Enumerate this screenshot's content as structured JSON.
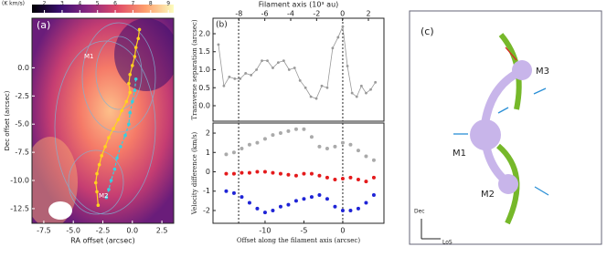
{
  "chart_data": [
    {
      "type": "scatter",
      "annotations": [
        "(a)",
        "M1",
        "M2"
      ],
      "xlabel": "RA offset (arcsec)",
      "ylabel": "Dec offset (arcsec)",
      "xlim": [
        -8.5,
        3.5
      ],
      "ylim": [
        -13.8,
        4.4
      ],
      "xticks": [
        -7.5,
        {
          "value": -5,
          "label": "-5.0"
        },
        -2.5,
        {
          "value": 0,
          "label": "0.0"
        },
        2.5
      ],
      "yticks": [
        {
          "value": 0,
          "label": "0.0"
        },
        -2.5,
        {
          "value": -5,
          "label": "-5.0"
        },
        -7.5,
        {
          "value": -10,
          "label": "-10.0"
        },
        -12.5
      ],
      "colorbar": {
        "label": "(K km/s)",
        "lim": [
          1.3,
          9.3
        ],
        "ticks": [
          2,
          3,
          4,
          5,
          6,
          7,
          8,
          9
        ]
      },
      "series": [
        {
          "color": "#ffd21f",
          "x": [
            0.6,
            0.5,
            0.3,
            0.2,
            0.0,
            -0.2,
            -0.3,
            -0.2,
            -0.5,
            -0.9,
            -1.2,
            -1.6,
            -2.0,
            -2.3,
            -2.6,
            -2.8,
            -3.0,
            -3.1,
            -3.0,
            -2.9
          ],
          "y": [
            3.4,
            2.6,
            1.8,
            1.0,
            0.2,
            -0.6,
            -1.4,
            -2.2,
            -3.0,
            -3.8,
            -4.6,
            -5.4,
            -6.2,
            -7.0,
            -7.8,
            -8.6,
            -9.4,
            -10.2,
            -11.0,
            -12.2
          ]
        },
        {
          "color": "#35d0e0",
          "x": [
            0.3,
            0.2,
            0.0,
            -0.2,
            -0.3,
            -0.6,
            -1.0,
            -1.3,
            -1.5,
            -1.8,
            -2.0,
            -2.2
          ],
          "y": [
            -1.0,
            -2.0,
            -3.0,
            -4.0,
            -5.0,
            -6.0,
            -7.0,
            -8.0,
            -9.0,
            -10.0,
            -10.8,
            -11.5
          ]
        }
      ]
    },
    {
      "type": "line",
      "annotations": [
        "(b)"
      ],
      "x2label": "Filament axis (10³ au)",
      "ylabel": "Transverse separation (arcsec)",
      "xlim": [
        -16.7,
        5.3
      ],
      "x2lim": [
        -10.0,
        3.2
      ],
      "x2ticks": [
        -8,
        -6,
        -4,
        -2,
        0,
        2
      ],
      "ylim": [
        -0.43,
        2.43
      ],
      "yticks": [
        {
          "value": 0,
          "label": "0.0"
        },
        0.5,
        {
          "value": 1,
          "label": "1.0"
        },
        1.5,
        {
          "value": 2,
          "label": "2.0"
        }
      ],
      "vlines": [
        -13.4,
        0
      ],
      "series": [
        {
          "color": "#999999",
          "x": [
            -16,
            -15.3,
            -14.6,
            -13.9,
            -13.2,
            -12.5,
            -11.8,
            -11.1,
            -10.4,
            -9.7,
            -9,
            -8.3,
            -7.6,
            -6.9,
            -6.2,
            -5.5,
            -4.8,
            -4.1,
            -3.4,
            -2.7,
            -2.0,
            -1.3,
            -0.6,
            0,
            0.6,
            1.2,
            1.8,
            2.4,
            3.0,
            3.6,
            4.2
          ],
          "y": [
            1.7,
            0.55,
            0.8,
            0.75,
            0.75,
            0.9,
            0.85,
            1.0,
            1.25,
            1.25,
            1.05,
            1.2,
            1.25,
            1.0,
            1.05,
            0.7,
            0.5,
            0.25,
            0.2,
            0.55,
            0.5,
            1.6,
            1.9,
            2.2,
            1.1,
            0.35,
            0.25,
            0.55,
            0.35,
            0.45,
            0.65
          ]
        }
      ]
    },
    {
      "type": "scatter",
      "xlabel": "Offset along the filament axis (arcsec)",
      "ylabel": "Velocity difference (km/s)",
      "xlim": [
        -16.7,
        5.3
      ],
      "xticks": [
        -10,
        -5,
        0
      ],
      "ylim": [
        -2.66,
        2.52
      ],
      "yticks": [
        -2,
        -1,
        0,
        1,
        2
      ],
      "vlines": [
        -13.4,
        0
      ],
      "x": [
        -15,
        -14,
        -13,
        -12,
        -11,
        -10,
        -9,
        -8,
        -7,
        -6,
        -5,
        -4,
        -3,
        -2,
        -1,
        0,
        1,
        2,
        3,
        4
      ],
      "series": [
        {
          "color": "#aaaaaa",
          "values": [
            0.9,
            1.0,
            1.2,
            1.4,
            1.5,
            1.7,
            1.9,
            2.0,
            2.1,
            2.2,
            2.2,
            1.8,
            1.3,
            1.2,
            1.3,
            1.5,
            1.4,
            1.1,
            0.8,
            0.6
          ]
        },
        {
          "color": "#e41a1c",
          "values": [
            -0.1,
            -0.1,
            -0.05,
            -0.05,
            0,
            0,
            -0.05,
            -0.1,
            -0.15,
            -0.2,
            -0.1,
            -0.1,
            -0.2,
            -0.3,
            -0.4,
            -0.35,
            -0.3,
            -0.4,
            -0.5,
            -0.3
          ]
        },
        {
          "color": "#1f24d6",
          "values": [
            -1.0,
            -1.1,
            -1.3,
            -1.6,
            -1.9,
            -2.1,
            -2.0,
            -1.8,
            -1.7,
            -1.5,
            -1.4,
            -1.3,
            -1.2,
            -1.4,
            -1.8,
            -2.0,
            -2.0,
            -1.9,
            -1.6,
            -1.2
          ]
        }
      ]
    }
  ],
  "diagram": {
    "label": "(c)",
    "nodes": [
      "M1",
      "M2",
      "M3"
    ],
    "axes": [
      "Dec",
      "LoS"
    ]
  }
}
